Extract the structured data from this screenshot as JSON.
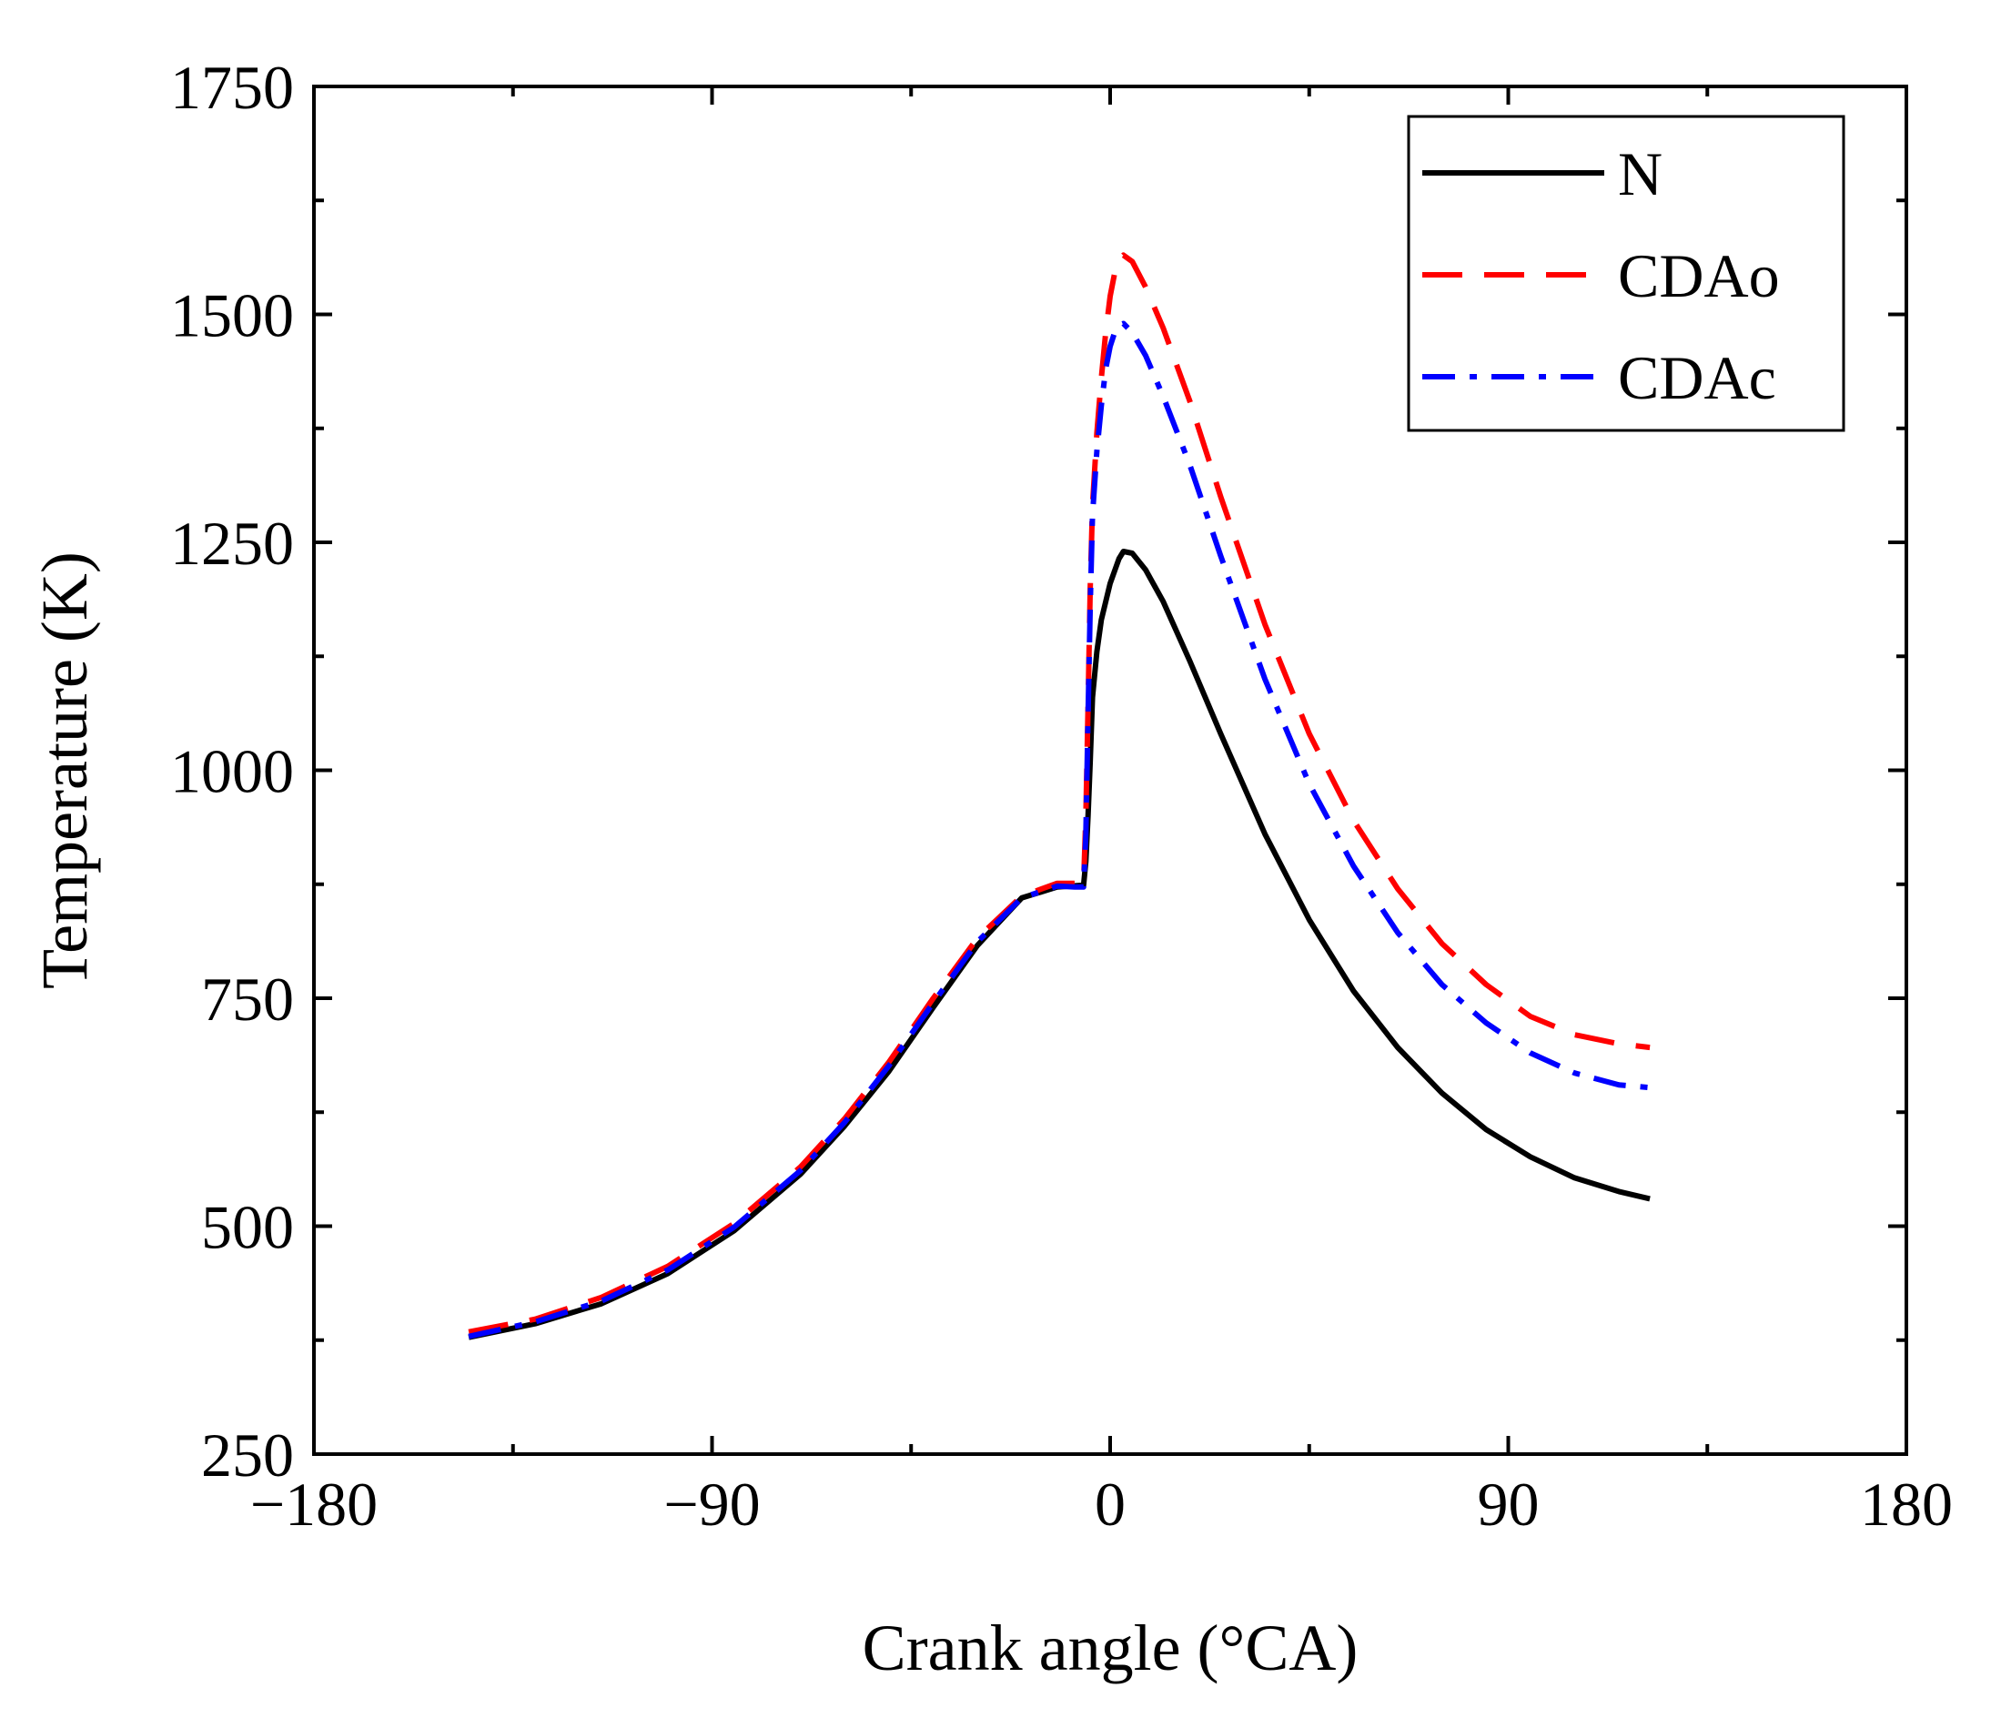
{
  "chart_data": {
    "type": "line",
    "title": "",
    "xlabel": "Crank angle (°CA)",
    "ylabel": "Temperature (K)",
    "xlim": [
      -180,
      180
    ],
    "ylim": [
      250,
      1750
    ],
    "xticks": [
      -180,
      -90,
      0,
      90,
      180
    ],
    "xtick_labels": [
      "−180",
      "−90",
      "0",
      "90",
      "180"
    ],
    "yticks": [
      250,
      500,
      750,
      1000,
      1250,
      1500,
      1750
    ],
    "ytick_labels": [
      "250",
      "500",
      "750",
      "1000",
      "1250",
      "1500",
      "1750"
    ],
    "grid": false,
    "legend_position": "top-right",
    "series": [
      {
        "name": "N",
        "color": "#000000",
        "dash": "solid",
        "x": [
          -145,
          -130,
          -115,
          -100,
          -85,
          -70,
          -60,
          -50,
          -40,
          -30,
          -20,
          -12,
          -6,
          -5.5,
          -5,
          -4.5,
          -4,
          -3,
          -2,
          0,
          2,
          3,
          5,
          8,
          12,
          18,
          25,
          35,
          45,
          55,
          65,
          75,
          85,
          95,
          105,
          115,
          122
        ],
        "y": [
          378,
          393,
          415,
          448,
          495,
          557,
          610,
          670,
          740,
          808,
          860,
          872,
          874,
          900,
          950,
          1010,
          1080,
          1130,
          1165,
          1205,
          1232,
          1240,
          1238,
          1220,
          1185,
          1120,
          1040,
          930,
          836,
          758,
          696,
          646,
          606,
          576,
          553,
          538,
          530
        ]
      },
      {
        "name": "CDAo",
        "color": "#ff0000",
        "dash": "dashed",
        "x": [
          -145,
          -130,
          -115,
          -100,
          -85,
          -70,
          -60,
          -50,
          -40,
          -30,
          -20,
          -12,
          -8,
          -6,
          -5.5,
          -5,
          -4.5,
          -4,
          -3,
          -2,
          -1,
          0,
          1,
          2,
          3,
          5,
          8,
          12,
          18,
          25,
          35,
          45,
          55,
          65,
          75,
          85,
          95,
          105,
          115,
          122
        ],
        "y": [
          384,
          398,
          422,
          456,
          503,
          565,
          618,
          680,
          750,
          816,
          862,
          876,
          876,
          876,
          950,
          1070,
          1200,
          1290,
          1370,
          1430,
          1480,
          1520,
          1545,
          1560,
          1565,
          1558,
          1530,
          1485,
          1405,
          1300,
          1160,
          1040,
          945,
          870,
          810,
          765,
          730,
          710,
          700,
          696
        ]
      },
      {
        "name": "CDAc",
        "color": "#0000ff",
        "dash": "dashdot",
        "x": [
          -145,
          -130,
          -115,
          -100,
          -85,
          -70,
          -60,
          -50,
          -40,
          -30,
          -20,
          -12,
          -8,
          -6,
          -5.5,
          -5,
          -4.5,
          -4,
          -3,
          -2,
          -1,
          0,
          1,
          2,
          3,
          5,
          8,
          12,
          18,
          25,
          35,
          45,
          55,
          65,
          75,
          85,
          95,
          105,
          115,
          122
        ],
        "y": [
          379,
          395,
          418,
          452,
          499,
          561,
          614,
          676,
          745,
          812,
          860,
          873,
          872,
          872,
          930,
          1060,
          1180,
          1280,
          1350,
          1400,
          1440,
          1465,
          1480,
          1488,
          1490,
          1480,
          1455,
          1410,
          1335,
          1235,
          1100,
          985,
          895,
          822,
          765,
          723,
          690,
          668,
          655,
          652
        ]
      }
    ]
  }
}
